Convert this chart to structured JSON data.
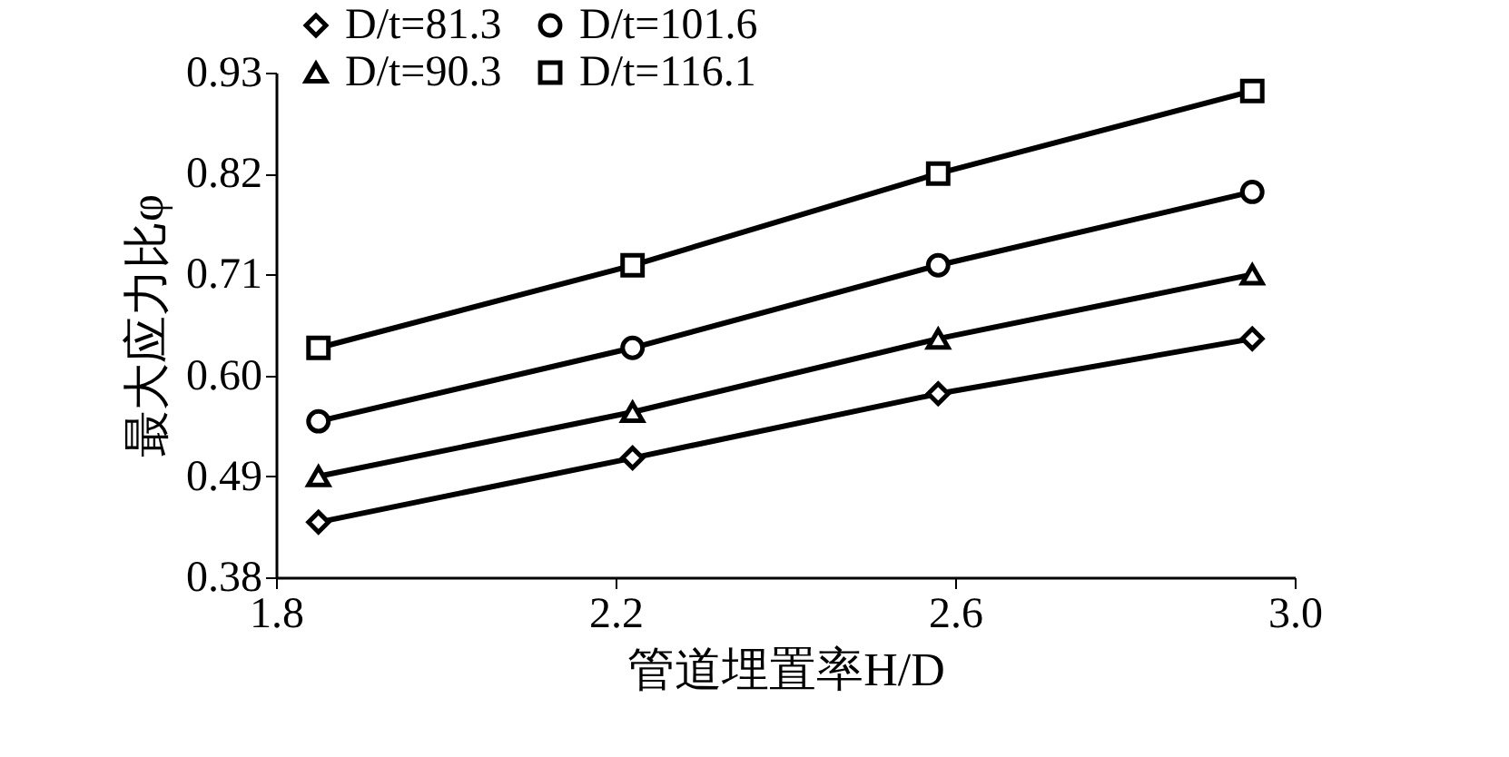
{
  "chart_data": {
    "type": "line",
    "xlabel": "管道埋置率H/D",
    "ylabel": "最大应力比φ",
    "x": [
      1.85,
      2.22,
      2.58,
      2.95
    ],
    "xlim": [
      1.8,
      3.0
    ],
    "xticks": [
      1.8,
      2.2,
      2.6,
      {
        "value": 3,
        "label": "3.0"
      }
    ],
    "ylim": [
      0.38,
      0.93
    ],
    "yticks": [
      0.38,
      0.49,
      {
        "value": 0.6,
        "label": "0.60"
      },
      0.71,
      0.82,
      0.93
    ],
    "grid": false,
    "legend": "top left",
    "line_style": "solid",
    "series": [
      {
        "name": "D/t=81.3",
        "color": "#000000",
        "marker": "diamond",
        "values": [
          0.44,
          0.51,
          0.58,
          0.64
        ]
      },
      {
        "name": "D/t=90.3",
        "color": "#000000",
        "marker": "triangle",
        "values": [
          0.49,
          0.56,
          0.64,
          0.71
        ]
      },
      {
        "name": "D/t=101.6",
        "color": "#000000",
        "marker": "circle",
        "values": [
          0.55,
          0.63,
          0.72,
          0.8
        ]
      },
      {
        "name": "D/t=116.1",
        "color": "#000000",
        "marker": "square",
        "values": [
          0.63,
          0.72,
          0.82,
          0.91
        ]
      }
    ]
  }
}
